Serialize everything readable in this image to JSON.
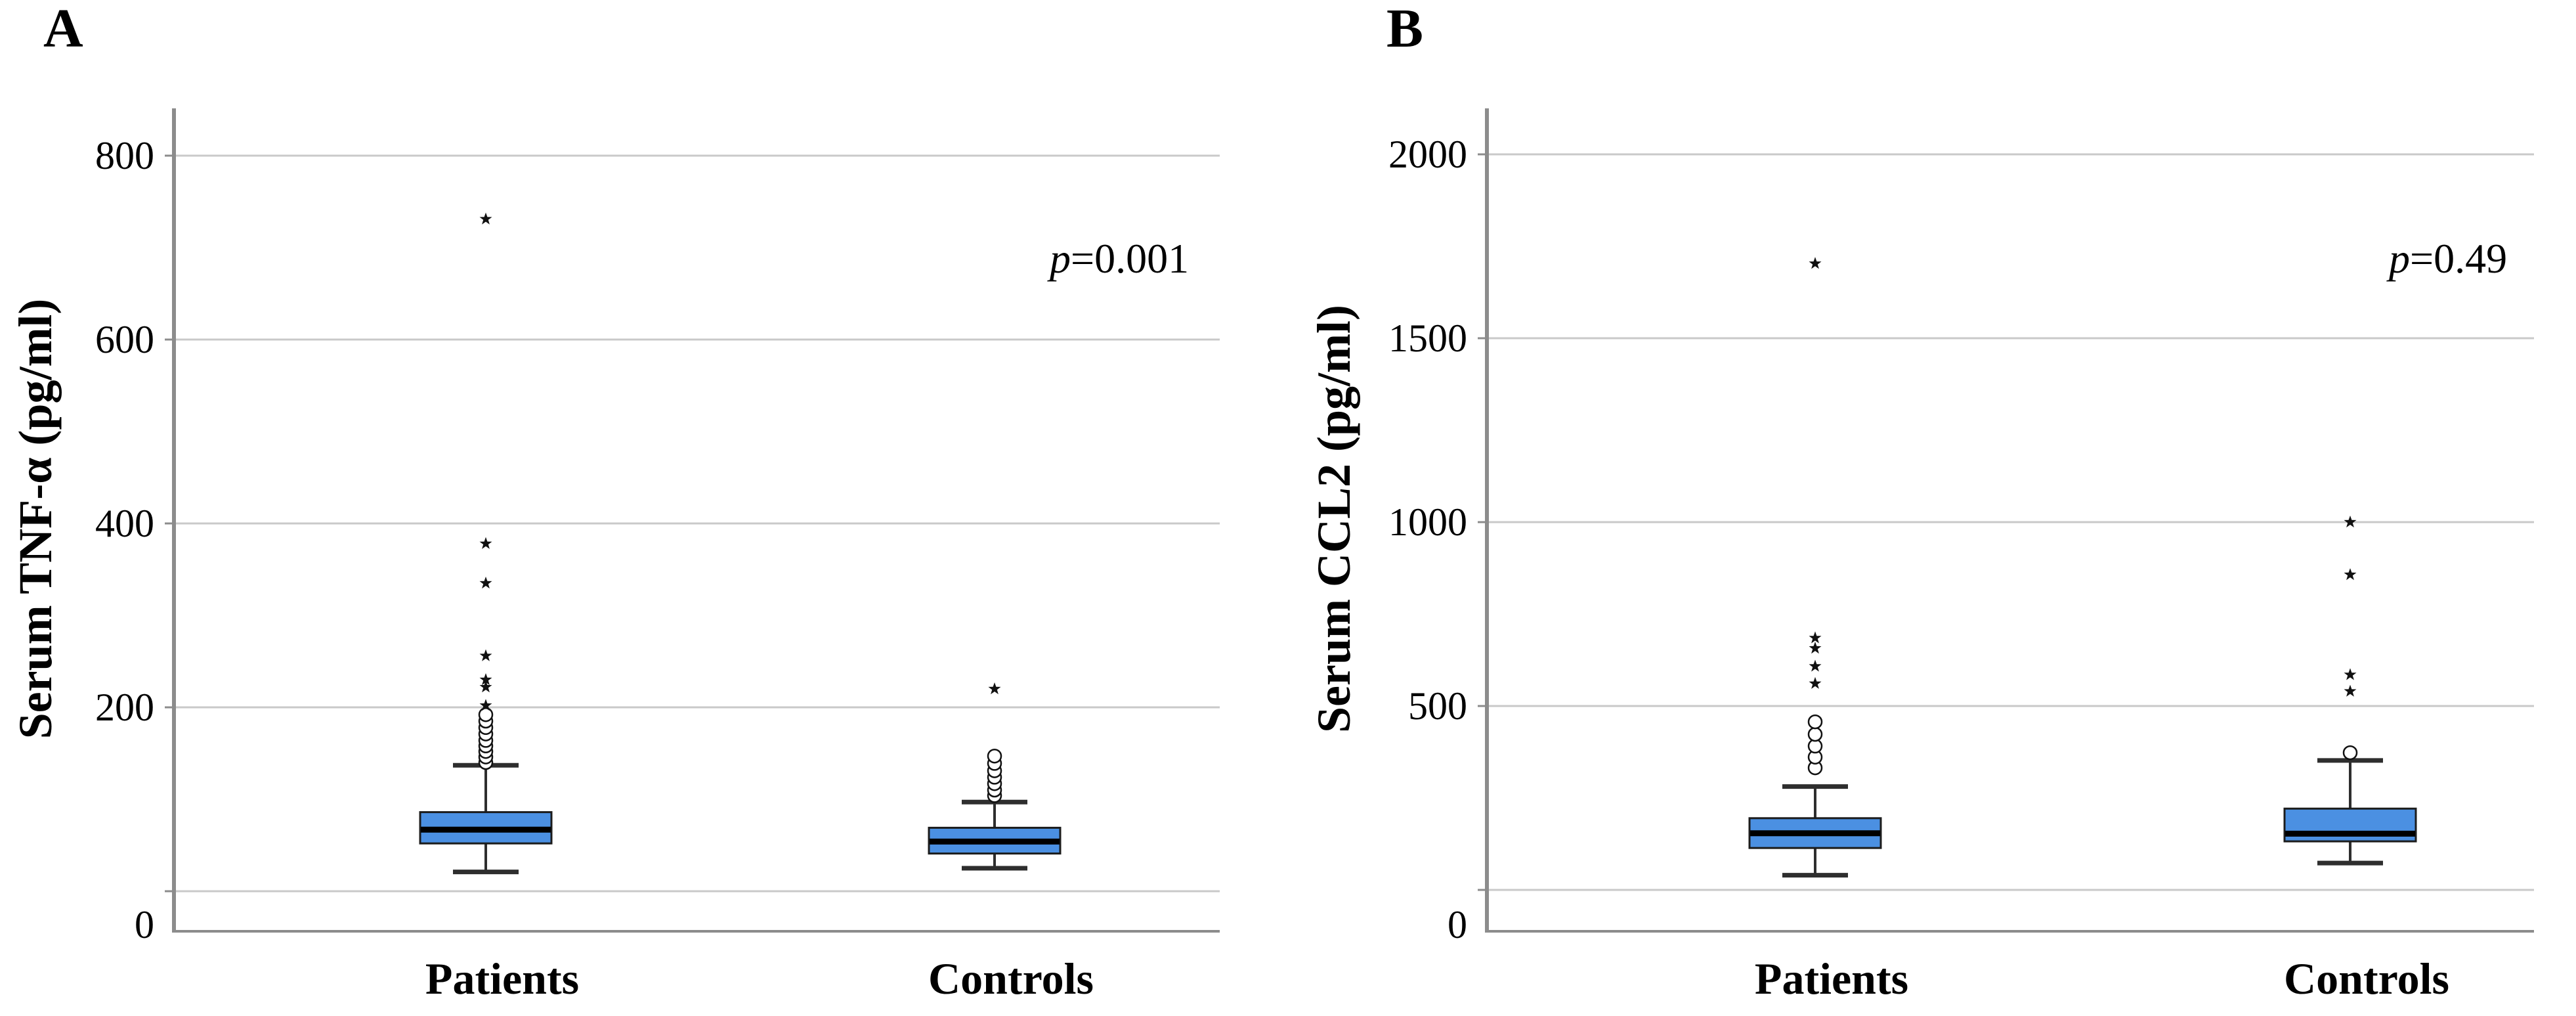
{
  "colors": {
    "box_fill": "#4b90e2",
    "box_border": "#1c1c1c",
    "median": "#000000",
    "whisker": "#2e2e2e",
    "gridline": "#c9c9c9",
    "axis": "#8c8c8c",
    "outlier": "#111111",
    "background": "#ffffff"
  },
  "chart_data": [
    {
      "type": "boxplot",
      "panel_label": "A",
      "ylabel": "Serum TNF-α (pg/ml)",
      "xlabel": "",
      "p_italic": "p",
      "p_rest": "=0.001",
      "categories": [
        "Patients",
        "Controls"
      ],
      "y_ticks": [
        0,
        200,
        400,
        600,
        800
      ],
      "ylim": [
        -44,
        852
      ],
      "grid": "horizontal",
      "legend": "none",
      "series": [
        {
          "name": "Patients",
          "whisker_low": 21,
          "q1": 52,
          "median": 67,
          "q3": 86,
          "whisker_high": 137,
          "outliers_circle": [
            140,
            146,
            152,
            158,
            164,
            171,
            178,
            185,
            192
          ],
          "outliers_star": [
            202,
            222,
            230,
            256,
            335,
            378,
            731
          ]
        },
        {
          "name": "Controls",
          "whisker_low": 25,
          "q1": 41,
          "median": 54,
          "q3": 69,
          "whisker_high": 97,
          "outliers_circle": [
            104,
            110,
            117,
            124,
            131,
            139,
            147
          ],
          "outliers_star": [
            220
          ]
        }
      ]
    },
    {
      "type": "boxplot",
      "panel_label": "B",
      "ylabel": "Serum CCL2 (pg/ml)",
      "xlabel": "",
      "p_italic": "p",
      "p_rest": "=0.49",
      "categories": [
        "Patients",
        "Controls"
      ],
      "y_ticks": [
        0,
        500,
        1000,
        1500,
        2000
      ],
      "ylim": [
        -112,
        2125
      ],
      "grid": "horizontal",
      "legend": "none",
      "series": [
        {
          "name": "Patients",
          "whisker_low": 40,
          "q1": 114,
          "median": 154,
          "q3": 195,
          "whisker_high": 281,
          "outliers_circle": [
            332,
            361,
            391,
            423,
            457
          ],
          "outliers_star": [
            561,
            608,
            657,
            685,
            1703
          ]
        },
        {
          "name": "Controls",
          "whisker_low": 73,
          "q1": 132,
          "median": 153,
          "q3": 221,
          "whisker_high": 352,
          "outliers_circle": [
            373
          ],
          "outliers_star": [
            540,
            585,
            857,
            1000
          ]
        }
      ]
    }
  ]
}
